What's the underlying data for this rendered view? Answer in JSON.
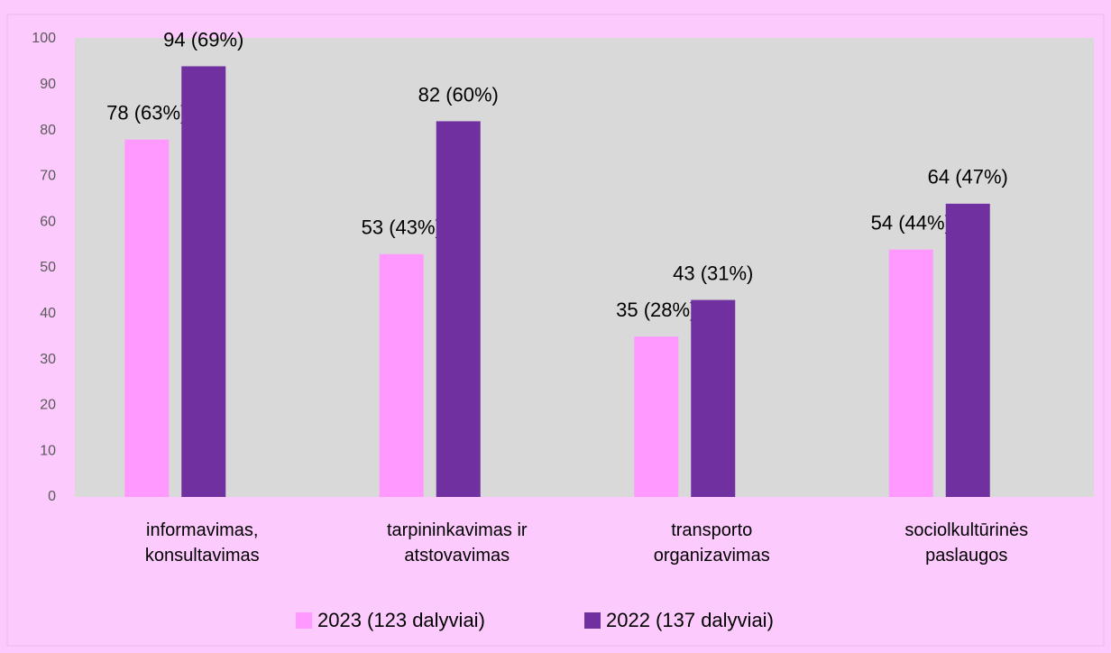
{
  "chart_data": {
    "type": "bar",
    "categories": [
      "informavimas, konsultavimas",
      "tarpininkavimas ir atstovavimas",
      "transporto organizavimas",
      "sociolkultūrinės paslaugos"
    ],
    "series": [
      {
        "name": "2023 (123 dalyviai)",
        "color": "#ff99ff",
        "values": [
          78,
          53,
          35,
          54
        ],
        "value_labels": [
          "78 (63%)",
          "53 (43%)",
          "35 (28%)",
          "54 (44%)"
        ]
      },
      {
        "name": "2022 (137 dalyviai)",
        "color": "#7030a0",
        "values": [
          94,
          82,
          43,
          64
        ],
        "value_labels": [
          "94 (69%)",
          "82 (60%)",
          "43 (31%)",
          "64 (47%)"
        ]
      }
    ],
    "ylim": [
      0,
      100
    ],
    "yticks": [
      0,
      10,
      20,
      30,
      40,
      50,
      60,
      70,
      80,
      90,
      100
    ],
    "grid": false,
    "legend": "bottom"
  }
}
